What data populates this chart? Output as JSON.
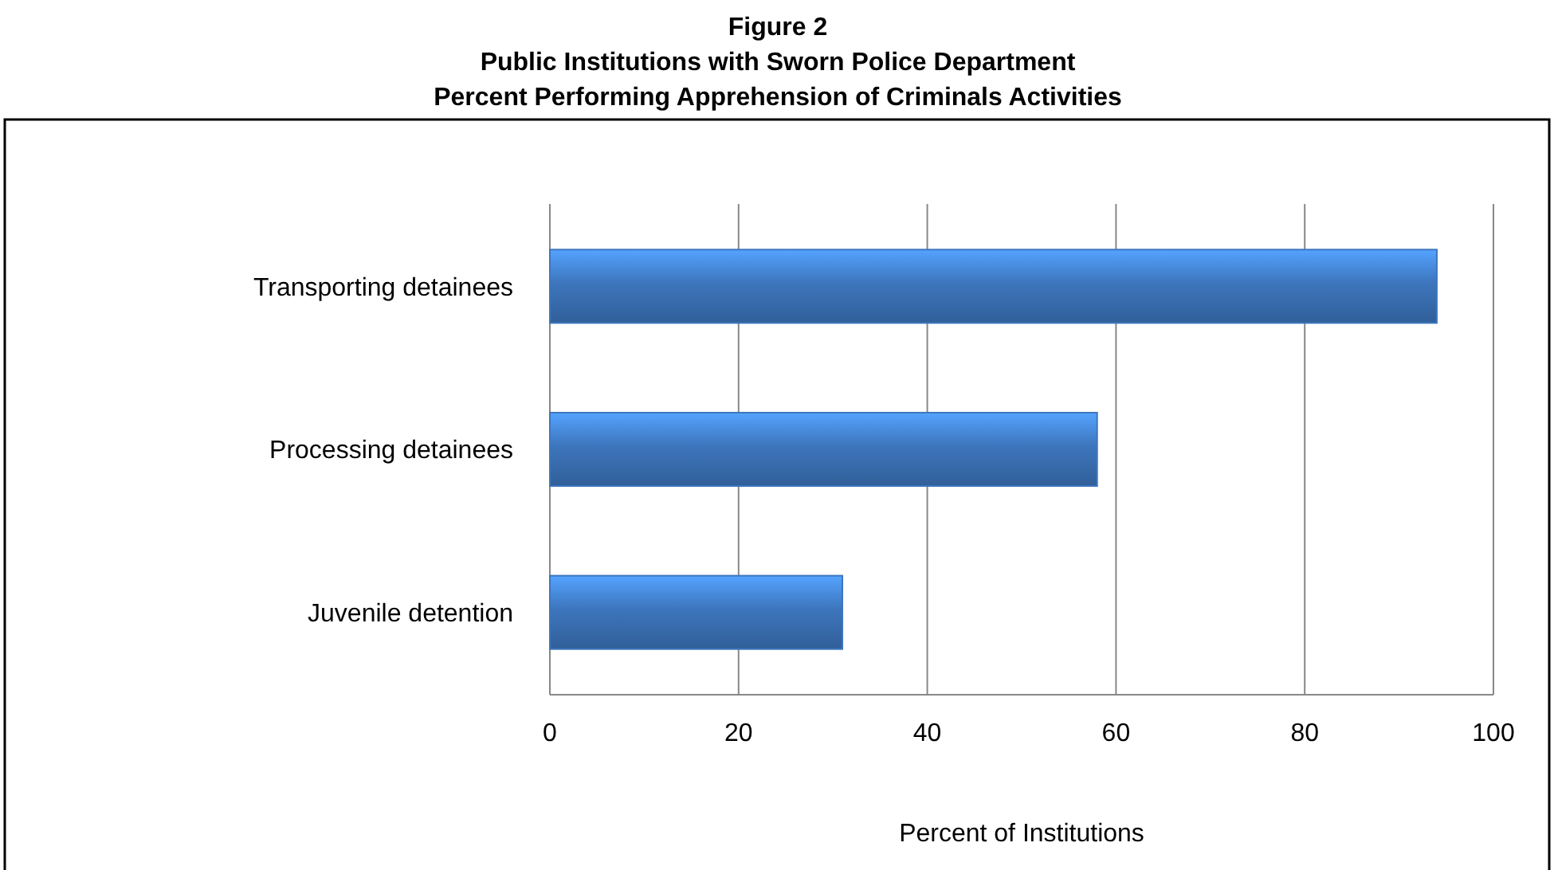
{
  "chart_data": {
    "type": "bar",
    "orientation": "horizontal",
    "title": "Figure 2\nPublic Institutions with Sworn Police Department\nPercent Performing Apprehension of Criminals Activities",
    "categories": [
      "Transporting detainees",
      "Processing detainees",
      "Juvenile detention"
    ],
    "values": [
      94,
      58,
      31
    ],
    "color": "#3d76bd",
    "xlim": [
      0,
      100
    ],
    "xticks": [
      0,
      20,
      40,
      60,
      80,
      100
    ],
    "grid": "x",
    "xlabel": "Percent of Institutions"
  }
}
